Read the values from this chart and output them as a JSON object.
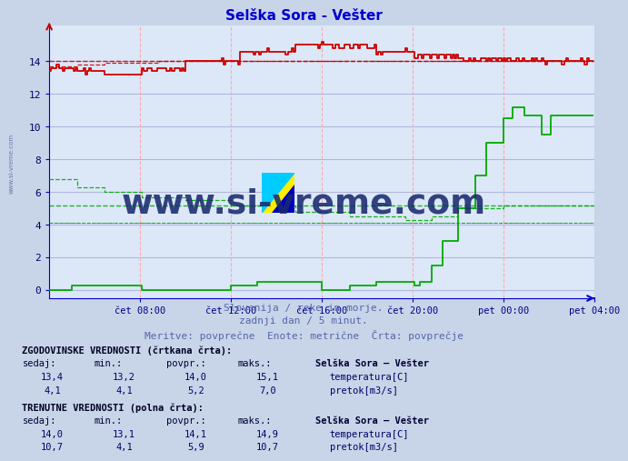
{
  "title": "Selška Sora - Vešter",
  "title_color": "#0000cc",
  "bg_color": "#c8d4e8",
  "plot_bg_color": "#dce8f8",
  "grid_color": "#b0b8d8",
  "vgrid_color": "#ffaaaa",
  "xlabel_color": "#000088",
  "ylabel_color": "#000066",
  "watermark_text": "www.si-vreme.com",
  "watermark_color": "#1a2a6e",
  "subtitle1": "Slovenija / reke in morje.",
  "subtitle2": "zadnji dan / 5 minut.",
  "subtitle3": "Meritve: povprečne  Enote: metrične  Črta: povprečje",
  "subtitle_color": "#5566aa",
  "x_tick_labels": [
    "čet 08:00",
    "čet 12:00",
    "čet 16:00",
    "čet 20:00",
    "pet 00:00",
    "pet 04:00"
  ],
  "x_tick_positions": [
    48,
    96,
    144,
    192,
    240,
    288
  ],
  "y_ticks": [
    0,
    2,
    4,
    6,
    8,
    10,
    12,
    14
  ],
  "ylim": [
    -0.5,
    16.2
  ],
  "xlim": [
    0,
    288
  ],
  "temp_avg_dashed_value": 14.0,
  "flow_avg_dashed_value_1": 5.2,
  "flow_avg_dashed_value_2": 4.1,
  "hist_label": "ZGODOVINSKE VREDNOSTI (črtkana črta):",
  "curr_label": "TRENUTNE VREDNOSTI (polna črta):",
  "col_headers": [
    "sedaj:",
    "min.:",
    "povpr.:",
    "maks.:",
    "Selška Sora – Vešter"
  ],
  "hist_temp": [
    13.4,
    13.2,
    14.0,
    15.1
  ],
  "hist_flow": [
    4.1,
    4.1,
    5.2,
    7.0
  ],
  "curr_temp": [
    14.0,
    13.1,
    14.1,
    14.9
  ],
  "curr_flow": [
    10.7,
    4.1,
    5.9,
    10.7
  ],
  "temp_label": "temperatura[C]",
  "flow_label": "pretok[m3/s]",
  "temp_color": "#cc0000",
  "flow_color": "#00aa00",
  "axis_color": "#0000cc",
  "sidewater_color": "#6677aa"
}
